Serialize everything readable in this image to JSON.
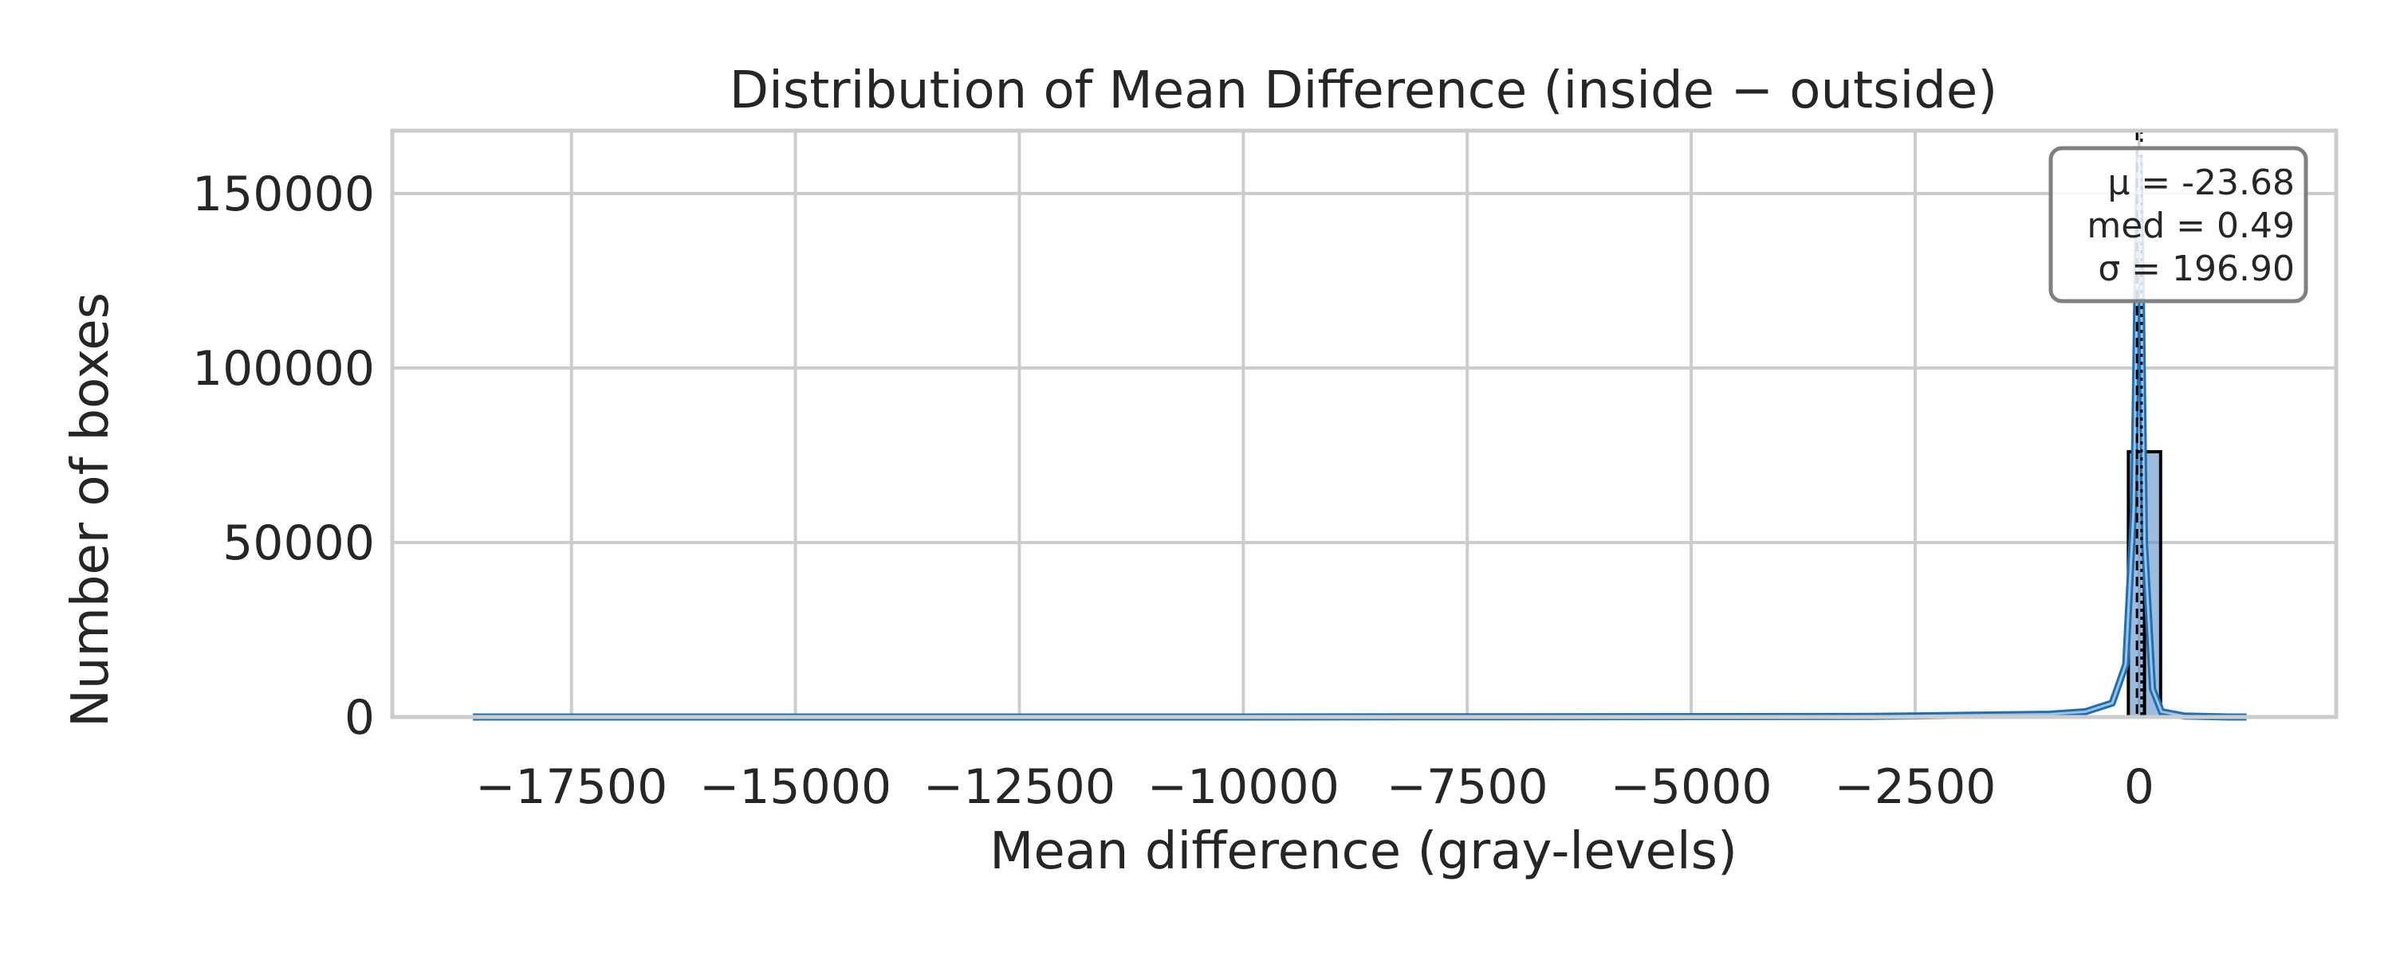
{
  "chart_data": {
    "type": "histogram",
    "title": "Distribution of Mean Difference (inside − outside)",
    "xlabel": "Mean difference (gray-levels)",
    "ylabel": "Number of boxes",
    "xlim": [
      -19500,
      2200
    ],
    "ylim": [
      0,
      168000
    ],
    "x_ticks": [
      -17500,
      -15000,
      -12500,
      -10000,
      -7500,
      -5000,
      -2500,
      0
    ],
    "x_tick_labels": [
      "−17500",
      "−15000",
      "−12500",
      "−10000",
      "−7500",
      "−5000",
      "−2500",
      "0"
    ],
    "y_ticks": [
      0,
      50000,
      100000,
      150000
    ],
    "y_tick_labels": [
      "0",
      "50000",
      "100000",
      "150000"
    ],
    "grid": true,
    "bins": [
      {
        "x0": -120,
        "x1": 60,
        "count": 76000
      },
      {
        "x0": 60,
        "x1": 240,
        "count": 76000
      }
    ],
    "kde": {
      "x": [
        -18600,
        -10000,
        -3000,
        -1000,
        -600,
        -300,
        -150,
        -60,
        -20,
        0,
        20,
        60,
        150,
        250,
        500,
        1000,
        1200
      ],
      "y": [
        0,
        0,
        150,
        800,
        1500,
        4000,
        15000,
        60000,
        130000,
        160000,
        130000,
        50000,
        8000,
        1500,
        300,
        0,
        0
      ]
    },
    "mean_line": -23.68,
    "median_line": 0.49,
    "stats_box": {
      "mean": "μ = -23.68",
      "median": "med = 0.49",
      "std": "σ = 196.90"
    },
    "colors": {
      "kde": "#1f6fb2",
      "bar_fill": "#5b8fc7",
      "bar_edge": "#000000",
      "grid": "#cccccc",
      "spine": "#cccccc"
    }
  }
}
